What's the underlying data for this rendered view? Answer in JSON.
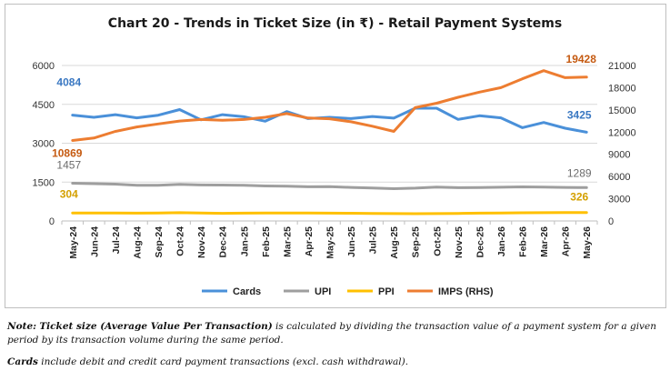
{
  "chart_data": {
    "type": "line",
    "title": "Chart 20 - Trends in Ticket Size (in ₹) - Retail Payment Systems",
    "categories": [
      "May-24",
      "Jun-24",
      "Jul-24",
      "Aug-24",
      "Sep-24",
      "Oct-24",
      "Nov-24",
      "Dec-24",
      "Jan-25",
      "Feb-25",
      "Mar-25",
      "Apr-25",
      "May-25",
      "Jun-25",
      "Jul-25",
      "Aug-25",
      "Sep-25",
      "Oct-25",
      "Nov-25",
      "Dec-25",
      "Jan-26",
      "Feb-26",
      "Mar-26",
      "Apr-26",
      "May-26"
    ],
    "y_left": {
      "ticks": [
        "0",
        "1500",
        "3000",
        "4500",
        "6000"
      ],
      "ylim": [
        0,
        6000
      ]
    },
    "y_right": {
      "ticks": [
        "0",
        "3000",
        "6000",
        "9000",
        "12000",
        "15000",
        "18000",
        "21000"
      ],
      "ylim": [
        0,
        21000
      ]
    },
    "grid": true,
    "legend_position": "bottom",
    "series": [
      {
        "name": "Cards",
        "axis": "left",
        "color": "#4a90d9",
        "values": [
          4084,
          4000,
          4100,
          3980,
          4080,
          4300,
          3900,
          4100,
          4020,
          3850,
          4220,
          3950,
          4000,
          3950,
          4030,
          3970,
          4350,
          4350,
          3920,
          4060,
          3980,
          3600,
          3800,
          3580,
          3425
        ],
        "labels": {
          "first": "4084",
          "last": "3425"
        }
      },
      {
        "name": "UPI",
        "axis": "left",
        "color": "#9e9e9e",
        "values": [
          1457,
          1440,
          1420,
          1380,
          1375,
          1410,
          1390,
          1385,
          1375,
          1350,
          1340,
          1320,
          1325,
          1295,
          1275,
          1245,
          1265,
          1310,
          1285,
          1290,
          1300,
          1315,
          1305,
          1295,
          1289
        ],
        "labels": {
          "first": "1457",
          "last": "1289"
        }
      },
      {
        "name": "PPI",
        "axis": "left",
        "color": "#ffc000",
        "values": [
          304,
          305,
          306,
          300,
          305,
          320,
          305,
          295,
          300,
          305,
          306,
          305,
          300,
          298,
          290,
          285,
          280,
          285,
          290,
          300,
          305,
          315,
          320,
          322,
          326
        ],
        "labels": {
          "first": "304",
          "last": "326"
        }
      },
      {
        "name": "IMPS (RHS)",
        "axis": "right",
        "color": "#ed7d31",
        "values": [
          10869,
          11200,
          12100,
          12700,
          13100,
          13500,
          13700,
          13600,
          13700,
          14000,
          14500,
          13900,
          13800,
          13400,
          12800,
          12100,
          15300,
          15900,
          16700,
          17400,
          18000,
          19200,
          20300,
          19350,
          19428
        ],
        "labels": {
          "first": "10869",
          "last": "19428"
        }
      }
    ]
  },
  "notes": {
    "note_label": "Note:",
    "note_term": "Ticket size (Average Value Per Transaction)",
    "note_text": "is calculated by dividing the transaction value of a payment system for a given period by its transaction volume during the same period.",
    "cards_label": "Cards",
    "cards_text": "include debit and credit card payment transactions (excl. cash withdrawal)."
  }
}
